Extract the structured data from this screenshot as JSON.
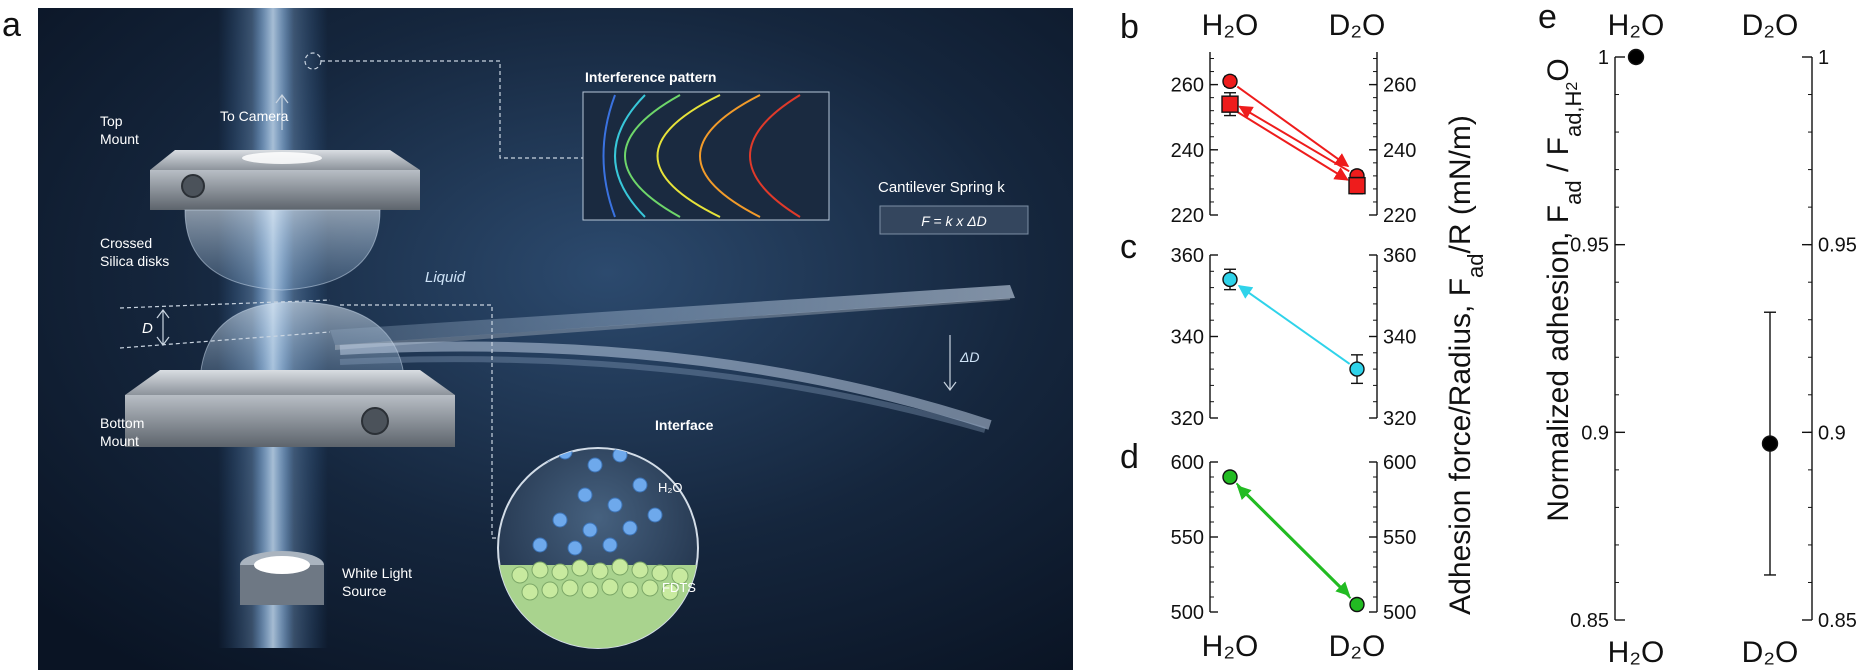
{
  "panel_a": {
    "letter": "a",
    "labels": {
      "to_camera": "To Camera",
      "top_mount": "Top\nMount",
      "crossed_disks": "Crossed\nSilica disks",
      "d_label": "D",
      "liquid": "Liquid",
      "bottom_mount": "Bottom\nMount",
      "white_light": "White Light\nSource",
      "interference": "Interference pattern",
      "cantilever": "Cantilever Spring k",
      "formula": "F = k x ΔD",
      "delta_d": "ΔD",
      "interface": "Interface",
      "h2o": "H₂O",
      "fdts": "FDTS"
    }
  },
  "labels": {
    "b": "b",
    "c": "c",
    "d": "d",
    "e": "e",
    "bcd_axis_title": "Adhesion force/Radius, F",
    "bcd_axis_sub": "ad",
    "bcd_axis_tail": "/R (mN/m)",
    "e_axis_title": "Normalized adhesion, F",
    "e_axis_sub1": "ad",
    "e_axis_mid": " / F",
    "e_axis_sub2": "ad,H",
    "e_axis_sub3": "2",
    "e_axis_tail": "O",
    "cat_h2o": "H₂O",
    "cat_d2o": "D₂O"
  },
  "chart_data": [
    {
      "panel": "b",
      "type": "scatter",
      "categories": [
        "H₂O",
        "D₂O"
      ],
      "color": "#ee1c1c",
      "ylim": [
        220,
        270
      ],
      "yticks": [
        220,
        240,
        260
      ],
      "series": [
        {
          "marker": "circle",
          "values": [
            261,
            232
          ],
          "errors": [
            1.5,
            1.5
          ]
        },
        {
          "marker": "square",
          "values": [
            254,
            229
          ],
          "errors": [
            3.5,
            2.5
          ]
        }
      ],
      "arrows": [
        {
          "from": [
            0,
            261
          ],
          "to": [
            1,
            233
          ]
        },
        {
          "from": [
            1,
            232
          ],
          "to": [
            0,
            255
          ]
        },
        {
          "from": [
            0,
            253
          ],
          "to": [
            1,
            229
          ]
        }
      ]
    },
    {
      "panel": "c",
      "type": "scatter",
      "categories": [
        "H₂O",
        "D₂O"
      ],
      "color": "#2fd3ea",
      "ylim": [
        320,
        360
      ],
      "yticks": [
        320,
        340,
        360
      ],
      "series": [
        {
          "marker": "circle",
          "values": [
            354,
            332
          ],
          "errors": [
            2.5,
            3.5
          ]
        }
      ],
      "arrows": [
        {
          "from": [
            1,
            332
          ],
          "to": [
            0,
            354
          ]
        }
      ]
    },
    {
      "panel": "d",
      "type": "scatter",
      "categories": [
        "H₂O",
        "D₂O"
      ],
      "color": "#22bb22",
      "ylim": [
        500,
        600
      ],
      "yticks": [
        500,
        550,
        600
      ],
      "series": [
        {
          "marker": "circle",
          "values": [
            590,
            505
          ],
          "errors": [
            3,
            3
          ]
        }
      ],
      "arrows": [
        {
          "from": [
            0,
            590
          ],
          "to": [
            1,
            506
          ]
        },
        {
          "from": [
            1,
            505
          ],
          "to": [
            0,
            589
          ]
        }
      ]
    },
    {
      "panel": "e",
      "type": "scatter",
      "categories": [
        "H₂O",
        "D₂O"
      ],
      "color": "#000000",
      "ylim": [
        0.85,
        1.0
      ],
      "yticks": [
        0.85,
        0.9,
        0.95,
        1.0
      ],
      "ytick_labels": [
        "0.85",
        "0.9",
        "0.95",
        "1"
      ],
      "series": [
        {
          "marker": "circle",
          "values": [
            1.0,
            0.897
          ],
          "errors": [
            0,
            0.035
          ]
        }
      ]
    }
  ]
}
